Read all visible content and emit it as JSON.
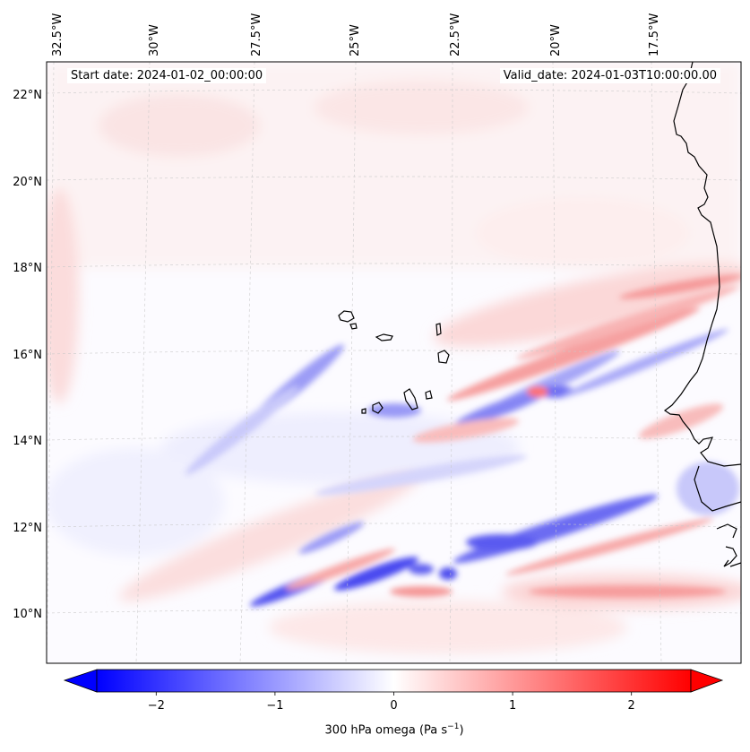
{
  "annotations": {
    "start_date": "Start date: 2024-01-02_00:00:00",
    "valid_date": "Valid_date: 2024-01-03T10:00:00.00"
  },
  "longitude_labels": [
    "32.5°W",
    "30°W",
    "27.5°W",
    "25°W",
    "22.5°W",
    "20°W",
    "17.5°W"
  ],
  "latitude_labels": [
    "22°N",
    "20°N",
    "18°N",
    "16°N",
    "14°N",
    "12°N",
    "10°N"
  ],
  "colorbar": {
    "label_prefix": "300 hPa omega (Pa s",
    "label_exponent": "−1",
    "label_suffix": ")",
    "tick_labels": [
      "−2",
      "−1",
      "0",
      "1",
      "2"
    ],
    "tick_values": [
      -2,
      -1,
      0,
      1,
      2
    ],
    "range": [
      -2.5,
      2.5
    ],
    "extend": "both",
    "colormap": "bwr",
    "colors": {
      "negative": "#0000ff",
      "zero": "#ffffff",
      "positive": "#ff0000"
    }
  },
  "map": {
    "variable": "300 hPa omega",
    "units": "Pa s^-1",
    "gridlines": true,
    "features": [
      "Cape Verde islands",
      "West African coastline"
    ]
  }
}
